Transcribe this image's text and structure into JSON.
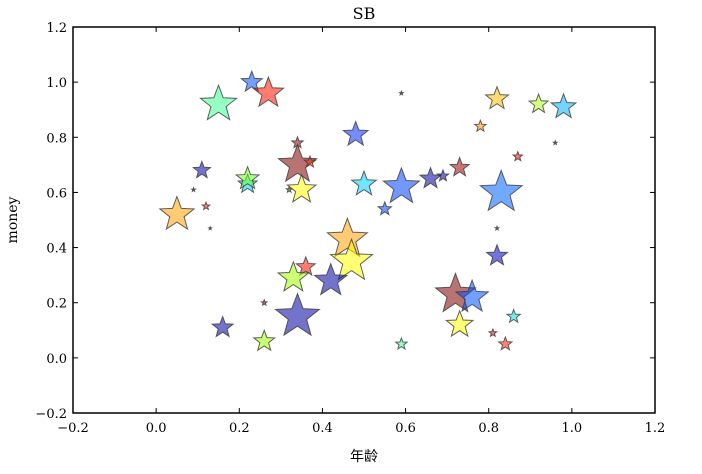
{
  "chart_data": {
    "type": "scatter",
    "marker": "star",
    "title": "SB",
    "xlabel": "年龄",
    "ylabel": "money",
    "xlim": [
      -0.2,
      1.2
    ],
    "ylim": [
      -0.2,
      1.2
    ],
    "xticks": [
      -0.2,
      0.0,
      0.2,
      0.4,
      0.6,
      0.8,
      1.0,
      1.2
    ],
    "xtick_labels": [
      "−0.2",
      "0.0",
      "0.2",
      "0.4",
      "0.6",
      "0.8",
      "1.0",
      "1.2"
    ],
    "yticks": [
      -0.2,
      0.0,
      0.2,
      0.4,
      0.6,
      0.8,
      1.0,
      1.2
    ],
    "ytick_labels": [
      "−0.2",
      "0.0",
      "0.2",
      "0.4",
      "0.6",
      "0.8",
      "1.0",
      "1.2"
    ],
    "grid": false,
    "alpha": 0.55,
    "points": [
      {
        "x": 0.15,
        "y": 0.92,
        "size": 19,
        "color": "#40ff90"
      },
      {
        "x": 0.23,
        "y": 1.0,
        "size": 11,
        "color": "#0050ff"
      },
      {
        "x": 0.27,
        "y": 0.96,
        "size": 16,
        "color": "#ff1000"
      },
      {
        "x": 0.11,
        "y": 0.68,
        "size": 9,
        "color": "#0000a8"
      },
      {
        "x": 0.09,
        "y": 0.61,
        "size": 2,
        "color": "#800000"
      },
      {
        "x": 0.12,
        "y": 0.55,
        "size": 4,
        "color": "#ff2000"
      },
      {
        "x": 0.13,
        "y": 0.47,
        "size": 1.5,
        "color": "#600000"
      },
      {
        "x": 0.05,
        "y": 0.52,
        "size": 18,
        "color": "#ffa000"
      },
      {
        "x": 0.22,
        "y": 0.63,
        "size": 10,
        "color": "#00d8ff"
      },
      {
        "x": 0.22,
        "y": 0.65,
        "size": 12,
        "color": "#70ff20"
      },
      {
        "x": 0.34,
        "y": 0.78,
        "size": 6,
        "color": "#900000"
      },
      {
        "x": 0.34,
        "y": 0.7,
        "size": 20,
        "color": "#800000"
      },
      {
        "x": 0.37,
        "y": 0.71,
        "size": 6,
        "color": "#ff3000"
      },
      {
        "x": 0.32,
        "y": 0.61,
        "size": 3,
        "color": "#704000"
      },
      {
        "x": 0.35,
        "y": 0.61,
        "size": 15,
        "color": "#ffff00"
      },
      {
        "x": 0.48,
        "y": 0.81,
        "size": 13,
        "color": "#0030ff"
      },
      {
        "x": 0.5,
        "y": 0.63,
        "size": 13,
        "color": "#00d0ff"
      },
      {
        "x": 0.55,
        "y": 0.54,
        "size": 7,
        "color": "#0040ff"
      },
      {
        "x": 0.59,
        "y": 0.62,
        "size": 19,
        "color": "#0040ff"
      },
      {
        "x": 0.59,
        "y": 0.96,
        "size": 2,
        "color": "#700000"
      },
      {
        "x": 0.66,
        "y": 0.65,
        "size": 11,
        "color": "#0000a0"
      },
      {
        "x": 0.69,
        "y": 0.66,
        "size": 6,
        "color": "#0000a0"
      },
      {
        "x": 0.73,
        "y": 0.69,
        "size": 10,
        "color": "#a00000"
      },
      {
        "x": 0.78,
        "y": 0.84,
        "size": 6,
        "color": "#ff9000"
      },
      {
        "x": 0.82,
        "y": 0.94,
        "size": 12,
        "color": "#ffc000"
      },
      {
        "x": 0.87,
        "y": 0.73,
        "size": 5,
        "color": "#ff0000"
      },
      {
        "x": 0.92,
        "y": 0.92,
        "size": 10,
        "color": "#b0ff20"
      },
      {
        "x": 0.98,
        "y": 0.91,
        "size": 13,
        "color": "#00b0ff"
      },
      {
        "x": 0.96,
        "y": 0.78,
        "size": 2,
        "color": "#700000"
      },
      {
        "x": 0.83,
        "y": 0.6,
        "size": 22,
        "color": "#0060ff"
      },
      {
        "x": 0.82,
        "y": 0.47,
        "size": 2,
        "color": "#a05000"
      },
      {
        "x": 0.82,
        "y": 0.37,
        "size": 11,
        "color": "#0000c0"
      },
      {
        "x": 0.46,
        "y": 0.43,
        "size": 21,
        "color": "#ffa000"
      },
      {
        "x": 0.47,
        "y": 0.35,
        "size": 22,
        "color": "#ffff00"
      },
      {
        "x": 0.42,
        "y": 0.28,
        "size": 17,
        "color": "#0000a0"
      },
      {
        "x": 0.36,
        "y": 0.33,
        "size": 10,
        "color": "#ff1000"
      },
      {
        "x": 0.33,
        "y": 0.29,
        "size": 16,
        "color": "#a0ff00"
      },
      {
        "x": 0.34,
        "y": 0.15,
        "size": 23,
        "color": "#0000a0"
      },
      {
        "x": 0.26,
        "y": 0.2,
        "size": 3,
        "color": "#700000"
      },
      {
        "x": 0.16,
        "y": 0.11,
        "size": 11,
        "color": "#0000a0"
      },
      {
        "x": 0.26,
        "y": 0.06,
        "size": 11,
        "color": "#a0ff00"
      },
      {
        "x": 0.59,
        "y": 0.05,
        "size": 6,
        "color": "#40ff90"
      },
      {
        "x": 0.72,
        "y": 0.23,
        "size": 21,
        "color": "#800000"
      },
      {
        "x": 0.76,
        "y": 0.22,
        "size": 17,
        "color": "#0050ff"
      },
      {
        "x": 0.73,
        "y": 0.12,
        "size": 14,
        "color": "#ffff00"
      },
      {
        "x": 0.81,
        "y": 0.09,
        "size": 4,
        "color": "#ff0000"
      },
      {
        "x": 0.84,
        "y": 0.05,
        "size": 7,
        "color": "#ff2000"
      },
      {
        "x": 0.86,
        "y": 0.15,
        "size": 7,
        "color": "#00e0d0"
      }
    ]
  }
}
